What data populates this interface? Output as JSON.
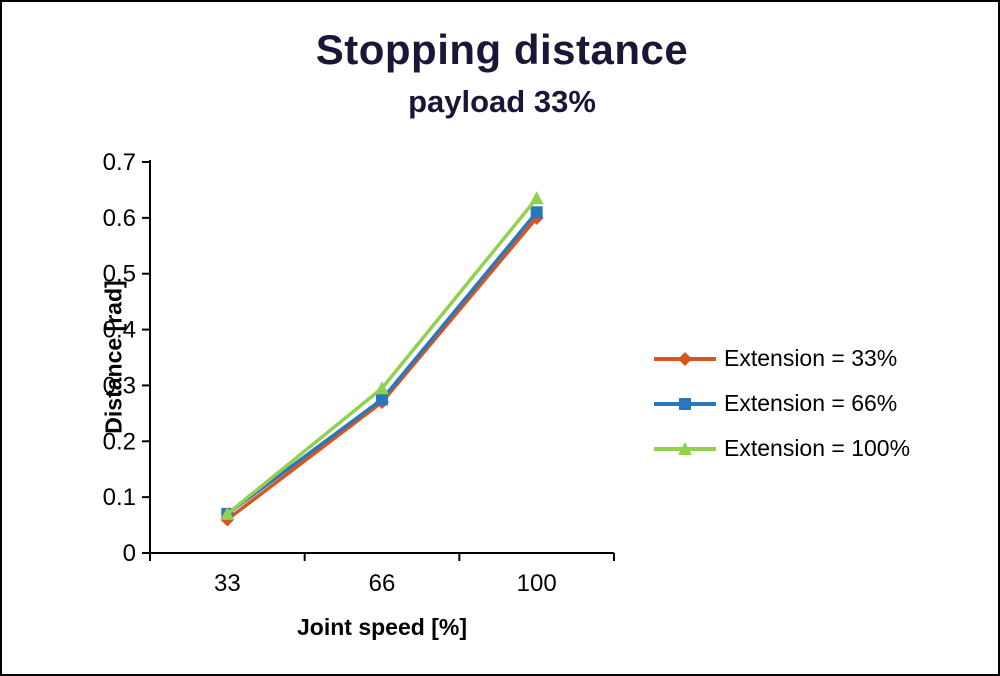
{
  "title": "Stopping distance",
  "subtitle": "payload 33%",
  "chart_data": {
    "type": "line",
    "categories": [
      "33",
      "66",
      "100"
    ],
    "xlabel": "Joint speed [%]",
    "ylabel": "Distance [rad]",
    "ylim": [
      0,
      0.7
    ],
    "ytick_step": 0.1,
    "grid": false,
    "legend_position": "right",
    "series": [
      {
        "name": "Extension = 33%",
        "color": "#D9541E",
        "marker": "diamond",
        "values": [
          0.06,
          0.27,
          0.6
        ]
      },
      {
        "name": "Extension = 66%",
        "color": "#2878BD",
        "marker": "square",
        "values": [
          0.07,
          0.275,
          0.61
        ]
      },
      {
        "name": "Extension = 100%",
        "color": "#92D050",
        "marker": "triangle",
        "values": [
          0.07,
          0.295,
          0.635
        ]
      }
    ]
  }
}
